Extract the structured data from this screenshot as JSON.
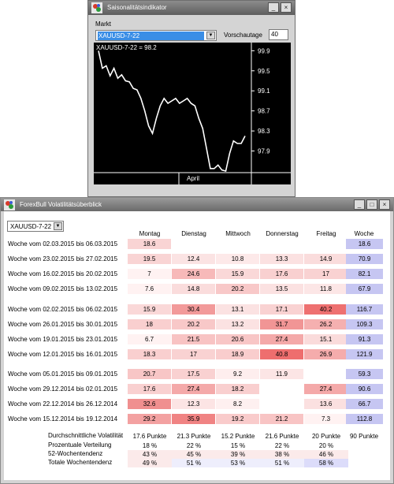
{
  "saison": {
    "title": "Saisonalitätsindikator",
    "markt_label": "Markt",
    "markt_value": "XAUUSD-7-22",
    "vorschau_label": "Vorschautage",
    "vorschau_value": "40",
    "chart_data": {
      "type": "line",
      "title": "XAUUSD-7-22 = 98.2",
      "xlabel": "",
      "ylabel": "",
      "x_tick_labels": [
        "April"
      ],
      "y_ticks": [
        97.9,
        98.3,
        98.7,
        99.1,
        99.5,
        99.9
      ],
      "ylim": [
        97.5,
        100.0
      ],
      "grid": false,
      "series": [
        {
          "color": "#ffffff",
          "values": [
            99.9,
            99.55,
            99.6,
            99.4,
            99.55,
            99.35,
            99.42,
            99.3,
            99.28,
            99.15,
            99.12,
            98.95,
            98.7,
            98.4,
            98.25,
            98.55,
            98.8,
            98.95,
            98.85,
            98.9,
            98.95,
            98.85,
            98.9,
            98.95,
            98.85,
            98.8,
            98.55,
            98.35,
            97.95,
            97.55,
            97.55,
            97.62,
            97.52,
            97.5,
            97.85,
            98.1,
            98.05,
            98.05,
            98.2
          ]
        }
      ]
    }
  },
  "vol": {
    "title": "ForexBull Volatilitätsüberblick",
    "market_value": "XAUUSD-7-22",
    "headers": [
      "Montag",
      "Dienstag",
      "Mittwoch",
      "Donnerstag",
      "Freitag",
      "Woche"
    ],
    "rows": [
      {
        "label": "Woche vom 02.03.2015 bis 06.03.2015",
        "values": [
          "18.6",
          "",
          "",
          "",
          ""
        ],
        "colors": [
          "#f9d4d4",
          "#ffffff",
          "#ffffff",
          "#ffffff",
          "#ffffff"
        ],
        "week": "18.6"
      },
      {
        "label": "Woche vom 23.02.2015 bis 27.02.2015",
        "values": [
          "19.5",
          "12.4",
          "10.8",
          "13.3",
          "14.9"
        ],
        "colors": [
          "#f9d4d4",
          "#fbe3e3",
          "#fde9e9",
          "#fbe1e1",
          "#fadcdc"
        ],
        "week": "70.9"
      },
      {
        "label": "Woche vom 16.02.2015 bis 20.02.2015",
        "values": [
          "7",
          "24.6",
          "15.9",
          "17.6",
          "17"
        ],
        "colors": [
          "#fff2f2",
          "#f7b9b9",
          "#fad8d8",
          "#f9d0d0",
          "#f9d2d2"
        ],
        "week": "82.1"
      },
      {
        "label": "Woche vom 09.02.2015 bis 13.02.2015",
        "values": [
          "7.6",
          "14.8",
          "20.2",
          "13.5",
          "11.8"
        ],
        "colors": [
          "#fff2f2",
          "#fadcdc",
          "#f8c8c8",
          "#fbe1e1",
          "#fce6e6"
        ],
        "week": "67.9"
      },
      {
        "label": "Woche vom 02.02.2015 bis 06.02.2015",
        "values": [
          "15.9",
          "30.4",
          "13.1",
          "17.1",
          "40.2"
        ],
        "colors": [
          "#fad8d8",
          "#f29a9a",
          "#fbe2e2",
          "#f9d2d2",
          "#ee7070"
        ],
        "week": "116.7"
      },
      {
        "label": "Woche vom 26.01.2015 bis 30.01.2015",
        "values": [
          "18",
          "20.2",
          "13.2",
          "31.7",
          "26.2"
        ],
        "colors": [
          "#f9cfcf",
          "#f8c8c8",
          "#fbe2e2",
          "#f19595",
          "#f5b0b0"
        ],
        "week": "109.3"
      },
      {
        "label": "Woche vom 19.01.2015 bis 23.01.2015",
        "values": [
          "6.7",
          "21.5",
          "20.6",
          "27.4",
          "15.1"
        ],
        "colors": [
          "#fff2f2",
          "#f8c3c3",
          "#f8c6c6",
          "#f4a9a9",
          "#fadbdb"
        ],
        "week": "91.3"
      },
      {
        "label": "Woche vom 12.01.2015 bis 16.01.2015",
        "values": [
          "18.3",
          "17",
          "18.9",
          "40.8",
          "26.9"
        ],
        "colors": [
          "#f9cfcf",
          "#f9d2d2",
          "#f9cdcd",
          "#ee6e6e",
          "#f5acac"
        ],
        "week": "121.9"
      },
      {
        "label": "Woche vom 05.01.2015 bis 09.01.2015",
        "values": [
          "20.7",
          "17.5",
          "9.2",
          "11.9",
          ""
        ],
        "colors": [
          "#f8c6c6",
          "#f9d1d1",
          "#feeeee",
          "#fce5e5",
          "#ffffff"
        ],
        "week": "59.3"
      },
      {
        "label": "Woche vom 29.12.2014 bis 02.01.2015",
        "values": [
          "17.6",
          "27.4",
          "18.2",
          "",
          "27.4"
        ],
        "colors": [
          "#f9d0d0",
          "#f4a9a9",
          "#f9cfcf",
          "#ffffff",
          "#f4a9a9"
        ],
        "week": "90.6"
      },
      {
        "label": "Woche vom 22.12.2014 bis 26.12.2014",
        "values": [
          "32.6",
          "12.3",
          "8.2",
          "",
          "13.6"
        ],
        "colors": [
          "#f08f8f",
          "#fce4e4",
          "#fef0f0",
          "#ffffff",
          "#fbe0e0"
        ],
        "week": "66.7"
      },
      {
        "label": "Woche vom 15.12.2014 bis 19.12.2014",
        "values": [
          "29.2",
          "35.9",
          "19.2",
          "21.2",
          "7.3"
        ],
        "colors": [
          "#f3a1a1",
          "#f08383",
          "#f9cbcb",
          "#f8c4c4",
          "#fff2f2"
        ],
        "week": "112.8"
      }
    ],
    "stats": [
      {
        "label": "Durchschnittliche Volatilität",
        "values": [
          "17.6 Punkte",
          "21.3 Punkte",
          "15.2 Punkte",
          "21.6 Punkte",
          "20 Punkte",
          "90 Punkte"
        ],
        "colors": [
          "",
          "",
          "",
          "",
          "",
          ""
        ]
      },
      {
        "label": "Prozentuale Verteilung",
        "values": [
          "18 %",
          "22 %",
          "15 %",
          "22 %",
          "20 %"
        ],
        "colors": [
          "",
          "",
          "",
          "",
          ""
        ]
      },
      {
        "label": "52-Wochentendenz",
        "values": [
          "43 %",
          "45 %",
          "39 %",
          "38 %",
          "46 %"
        ],
        "colors": [
          "#fbeaea",
          "#fbeaea",
          "#fbeaea",
          "#fbeaea",
          "#fbeaea"
        ]
      },
      {
        "label": "Totale Wochentendenz",
        "values": [
          "49 %",
          "51 %",
          "53 %",
          "51 %",
          "58 %"
        ],
        "colors": [
          "#fbeaea",
          "#eeeefc",
          "#eeeefc",
          "#eeeefc",
          "#dcdcfa"
        ]
      }
    ]
  }
}
